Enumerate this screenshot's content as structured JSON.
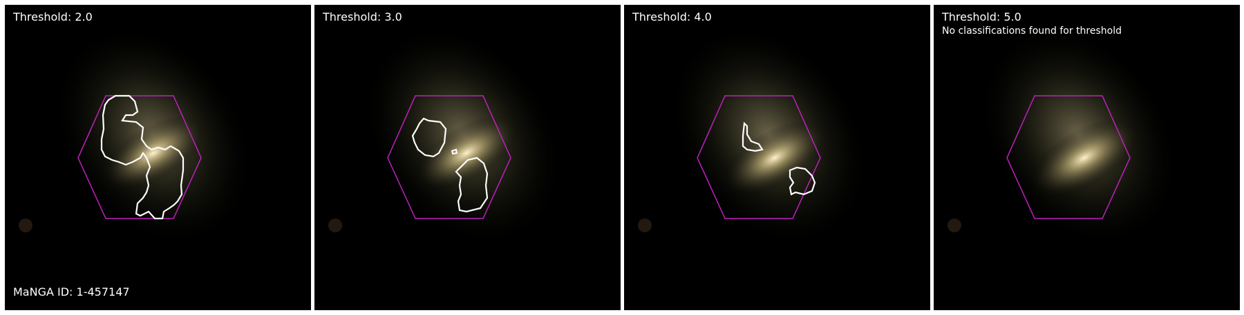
{
  "panels": [
    {
      "threshold_label": "Threshold: 2.0",
      "note": ""
    },
    {
      "threshold_label": "Threshold: 3.0",
      "note": ""
    },
    {
      "threshold_label": "Threshold: 4.0",
      "note": ""
    },
    {
      "threshold_label": "Threshold: 5.0",
      "note": "No classifications found for threshold"
    }
  ],
  "manga_id_label": "MaNGA ID: 1-457147",
  "colors": {
    "hexagon": "#c020c0",
    "contour": "#ffffff",
    "background": "#000000",
    "galaxy_core": "#fff3c8"
  }
}
